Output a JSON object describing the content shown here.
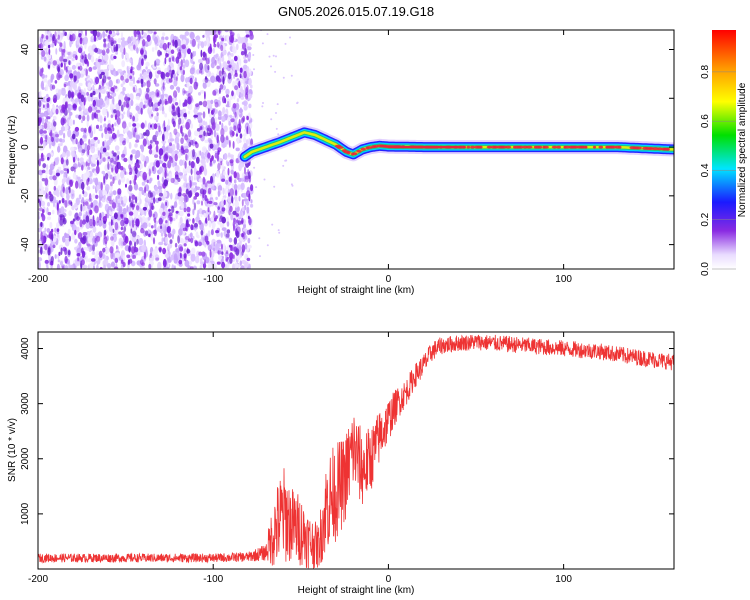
{
  "title": "GN05.2026.015.07.19.G18",
  "colors": {
    "snr_line": "#ee3333",
    "spec_low": "#7a1fe0",
    "spec_track_edge": "#2a1fd8",
    "spec_track_mid": "#21c47a",
    "spec_track_core": "#e8253c"
  },
  "chart_data": [
    {
      "type": "heatmap",
      "title": "",
      "xlabel": "Height of straight line (km)",
      "ylabel": "Frequency (Hz)",
      "xlim": [
        -200,
        163
      ],
      "ylim": [
        -50,
        48
      ],
      "xticks": [
        -200,
        -100,
        0,
        100
      ],
      "yticks": [
        40,
        20,
        0,
        -20,
        -40
      ],
      "colorbar": {
        "label": "Normalized spectral amplitude",
        "range": [
          0.0,
          0.97
        ],
        "ticks": [
          0.0,
          0.2,
          0.4,
          0.6,
          0.8
        ],
        "colormap": [
          "#e9dcff",
          "#8a2be2",
          "#1a1aff",
          "#00e5ff",
          "#00e000",
          "#ffff00",
          "#ff9900",
          "#ff0000"
        ]
      },
      "noise_region_x": [
        -200,
        -78
      ],
      "track": {
        "x": [
          -82,
          -78,
          -70,
          -62,
          -55,
          -48,
          -42,
          -36,
          -30,
          -24,
          -20,
          -15,
          -10,
          -5,
          0,
          20,
          60,
          100,
          130,
          163
        ],
        "frequency": [
          -4,
          -2,
          0,
          2,
          4,
          6,
          5,
          3,
          1,
          -2,
          -3,
          -1,
          0,
          0.5,
          0.2,
          0,
          0,
          0,
          0,
          -1
        ]
      }
    },
    {
      "type": "line",
      "title": "",
      "xlabel": "Height of straight line (km)",
      "ylabel": "SNR (10 * v/v)",
      "xlim": [
        -200,
        163
      ],
      "ylim": [
        0,
        4300
      ],
      "xticks": [
        -200,
        -100,
        0,
        100
      ],
      "yticks": [
        1000,
        2000,
        3000,
        4000
      ],
      "series": [
        {
          "name": "SNR",
          "x": [
            -200,
            -150,
            -100,
            -80,
            -70,
            -65,
            -60,
            -55,
            -50,
            -45,
            -40,
            -35,
            -30,
            -25,
            -20,
            -15,
            -10,
            -5,
            0,
            5,
            10,
            15,
            20,
            25,
            30,
            40,
            50,
            60,
            80,
            100,
            120,
            140,
            163
          ],
          "mean": [
            200,
            200,
            200,
            220,
            300,
            700,
            1000,
            800,
            700,
            500,
            400,
            1200,
            1400,
            1600,
            2200,
            1800,
            2000,
            2400,
            2700,
            3000,
            3200,
            3500,
            3700,
            3950,
            4050,
            4100,
            4120,
            4100,
            4050,
            4000,
            3950,
            3850,
            3750
          ],
          "spread": [
            80,
            80,
            80,
            90,
            150,
            700,
            900,
            700,
            650,
            500,
            400,
            900,
            900,
            800,
            800,
            700,
            600,
            500,
            400,
            300,
            250,
            220,
            200,
            180,
            160,
            150,
            150,
            150,
            150,
            150,
            150,
            150,
            150
          ]
        }
      ]
    }
  ]
}
